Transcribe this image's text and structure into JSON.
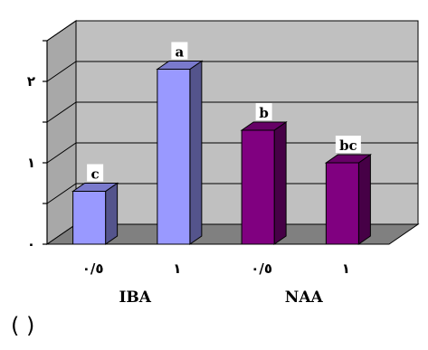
{
  "chart_data": {
    "type": "bar",
    "categories": [
      "٠/٥",
      "١",
      "٠/٥",
      "١"
    ],
    "groups": [
      {
        "label": "IBA",
        "category_indices": [
          0,
          1
        ]
      },
      {
        "label": "NAA",
        "category_indices": [
          2,
          3
        ]
      }
    ],
    "values": [
      0.65,
      2.15,
      1.4,
      1.0
    ],
    "data_labels": [
      "c",
      "a",
      "b",
      "bc"
    ],
    "bar_colors": [
      "#9999ff",
      "#9999ff",
      "#800080",
      "#800080"
    ],
    "ylim": [
      0,
      2.5
    ],
    "y_ticks": [
      {
        "value": 0,
        "label": "٠"
      },
      {
        "value": 0.5,
        "label": ""
      },
      {
        "value": 1,
        "label": "١"
      },
      {
        "value": 1.5,
        "label": ""
      },
      {
        "value": 2,
        "label": "٢"
      },
      {
        "value": 2.5,
        "label": ""
      }
    ],
    "grid": true,
    "three_d": true,
    "wall_color": "#c0c0c0",
    "floor_color": "#808080",
    "footer_text": "(                )"
  }
}
